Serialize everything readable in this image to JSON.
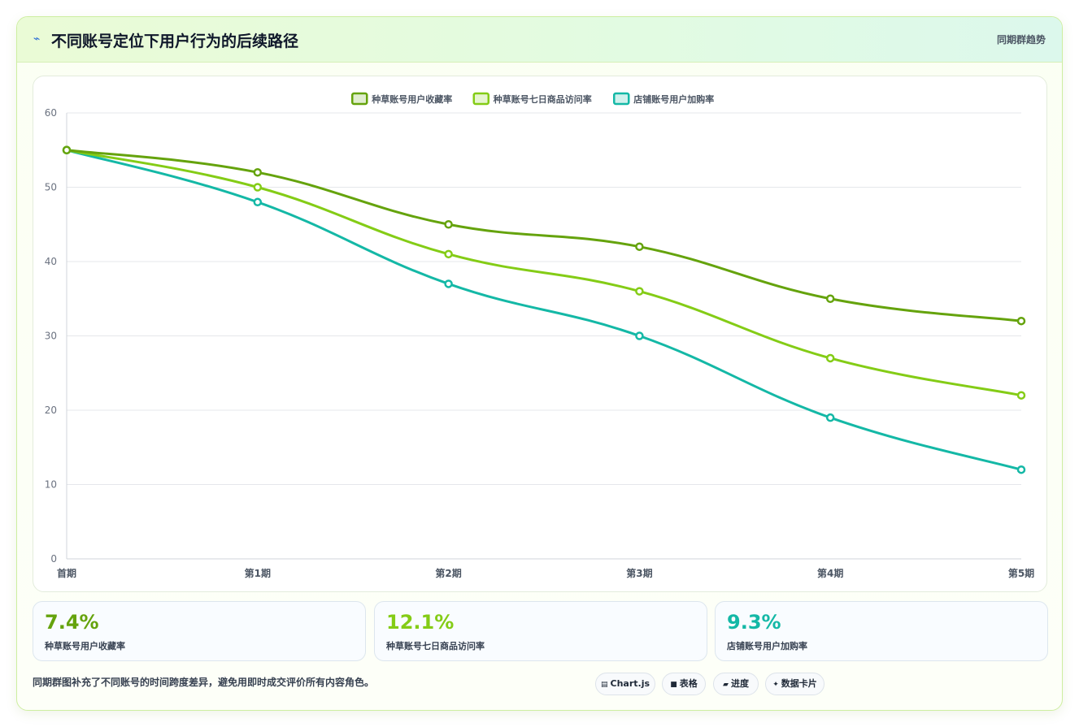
{
  "header": {
    "icon": "lightning-icon",
    "icon_glyph": "⌁",
    "title": "不同账号定位下用户行为的后续路径",
    "tag": "同期群趋势"
  },
  "chart_data": {
    "type": "line",
    "title": "",
    "xlabel": "",
    "ylabel": "",
    "categories": [
      "首期",
      "第1期",
      "第2期",
      "第3期",
      "第4期",
      "第5期"
    ],
    "ylim": [
      0,
      60
    ],
    "yticks": [
      0,
      10,
      20,
      30,
      40,
      50,
      60
    ],
    "grid": true,
    "legend": "top-center",
    "series": [
      {
        "name": "种草账号用户收藏率",
        "color": "#65a30d",
        "values": [
          55,
          52,
          45,
          42,
          35,
          32
        ]
      },
      {
        "name": "种草账号七日商品访问率",
        "color": "#84cc16",
        "values": [
          55,
          50,
          41,
          36,
          27,
          22
        ]
      },
      {
        "name": "店铺账号用户加购率",
        "color": "#14b8a6",
        "values": [
          55,
          48,
          37,
          30,
          19,
          12
        ]
      }
    ]
  },
  "stats": [
    {
      "value": "7.4%",
      "label": "种草账号用户收藏率",
      "color": "#65a30d"
    },
    {
      "value": "12.1%",
      "label": "种草账号七日商品访问率",
      "color": "#84cc16"
    },
    {
      "value": "9.3%",
      "label": "店铺账号用户加购率",
      "color": "#14b8a6"
    }
  ],
  "footer": {
    "note": "同期群图补充了不同账号的时间跨度差异，避免用即时成交评价所有内容角色。",
    "pills": [
      {
        "icon": "chart-icon",
        "glyph": "▤",
        "label": "Chart.js"
      },
      {
        "icon": "table-icon",
        "glyph": "■",
        "label": "表格"
      },
      {
        "icon": "progress-icon",
        "glyph": "▰",
        "label": "进度"
      },
      {
        "icon": "sparkle-icon",
        "glyph": "✦",
        "label": "数据卡片"
      }
    ]
  }
}
